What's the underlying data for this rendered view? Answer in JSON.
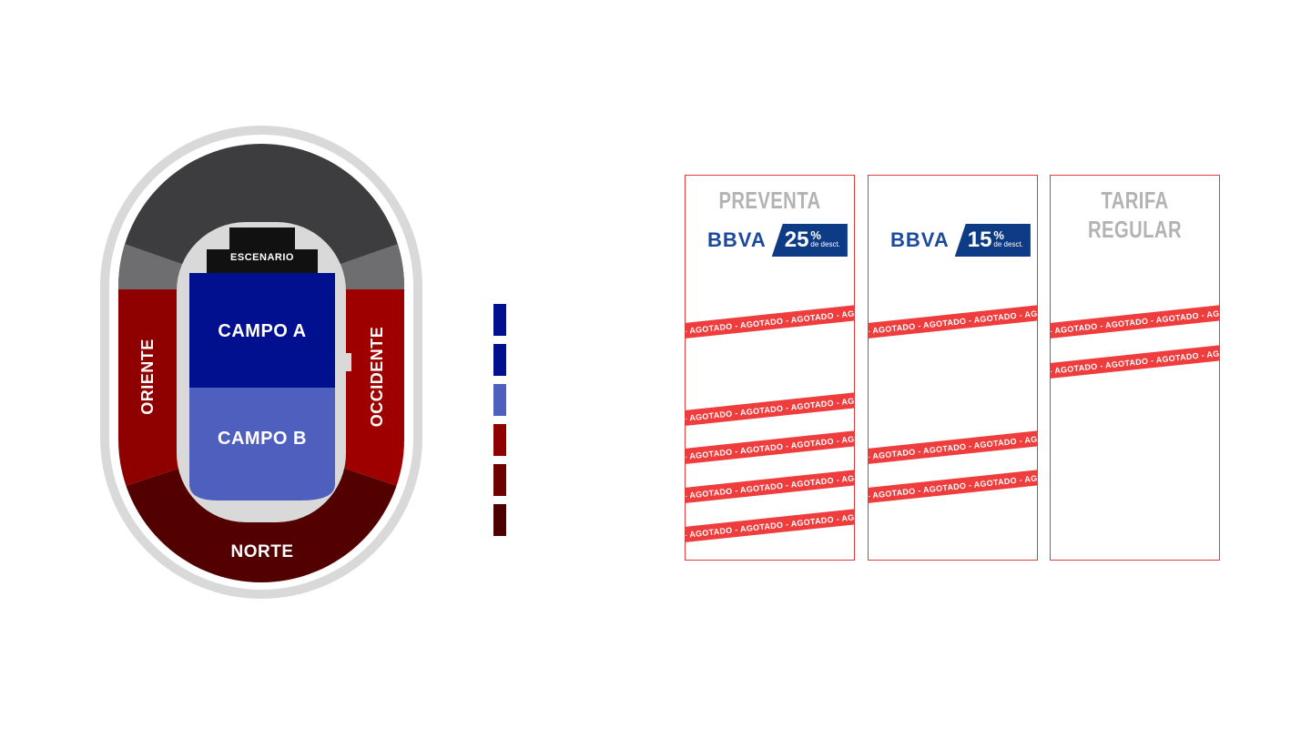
{
  "stadium": {
    "stage_label": "ESCENARIO",
    "sections": {
      "campo_a": "CAMPO A",
      "campo_b": "CAMPO B",
      "oriente": "ORIENTE",
      "occidente": "OCCIDENTE",
      "norte": "NORTE"
    }
  },
  "legend": {
    "swatches": [
      {
        "color": "#00108f"
      },
      {
        "color": "#00108f"
      },
      {
        "color": "#4f5fbd"
      },
      {
        "color": "#8f0000"
      },
      {
        "color": "#6e0000"
      },
      {
        "color": "#4c0000"
      }
    ]
  },
  "price_columns": [
    {
      "title": "PREVENTA",
      "bank": "BBVA",
      "discount_value": "25",
      "discount_pct": "%",
      "discount_sub": "de desct.",
      "sold_out_text": "- AGOTADO - AGOTADO - AGOTADO - AGOTADO - AGOTADO - AGOTADO"
    },
    {
      "title": "",
      "bank": "BBVA",
      "discount_value": "15",
      "discount_pct": "%",
      "discount_sub": "de desct.",
      "sold_out_text": "- AGOTADO - AGOTADO - AGOTADO - AGOTADO - AGOTADO - AGOTADO"
    },
    {
      "title_line1": "TARIFA",
      "title_line2": "REGULAR",
      "sold_out_text": "- AGOTADO - AGOTADO - AGOTADO - AGOTADO - AGOTADO - AGOTADO"
    }
  ],
  "colors": {
    "upper_tier": "#3d3d3f",
    "upper_wing": "#6e6e70",
    "track": "#d9d9d9",
    "campo_a": "#00108f",
    "campo_b": "#4f5fbd",
    "oriente": "#8f0000",
    "occidente": "#9e0000",
    "norte": "#520000",
    "stage": "#111111",
    "border_red": "#e03a3a",
    "ribbon_red": "#ef3d3d"
  }
}
